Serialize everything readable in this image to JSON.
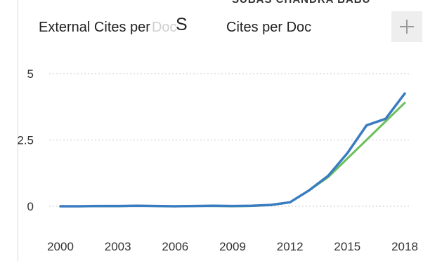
{
  "header_clip": "SUBAS CHANDRA BABU",
  "legend": {
    "item1_label": "External Cites per",
    "item1_ghost": "Doc",
    "overlay_letter": "S",
    "item2_label": "Cites per Doc"
  },
  "add_button_symbol": "+",
  "chart_data": {
    "type": "line",
    "x": [
      2000,
      2001,
      2002,
      2003,
      2004,
      2005,
      2006,
      2007,
      2008,
      2009,
      2010,
      2011,
      2012,
      2013,
      2014,
      2015,
      2016,
      2017,
      2018
    ],
    "x_ticks": [
      "2000",
      "2003",
      "2006",
      "2009",
      "2012",
      "2015",
      "2018"
    ],
    "y_ticks": [
      "0",
      "2.5",
      "5"
    ],
    "ylim": [
      0,
      5
    ],
    "xlim": [
      2000,
      2018
    ],
    "grid": true,
    "legend_position": "top",
    "series": [
      {
        "name": "External Cites per Doc",
        "color": "#6cc05c",
        "values": [
          0,
          0,
          0,
          0,
          0.02,
          0.01,
          0,
          0.01,
          0.01,
          0,
          0.01,
          0.05,
          0.15,
          0.6,
          1.1,
          1.8,
          2.5,
          3.2,
          3.9
        ]
      },
      {
        "name": "Cites per Doc",
        "color": "#3a7cc0",
        "values": [
          0,
          0,
          0.01,
          0.01,
          0.02,
          0.01,
          0,
          0.01,
          0.02,
          0.01,
          0.02,
          0.05,
          0.15,
          0.6,
          1.15,
          2,
          3.05,
          3.3,
          4.25
        ]
      }
    ]
  }
}
